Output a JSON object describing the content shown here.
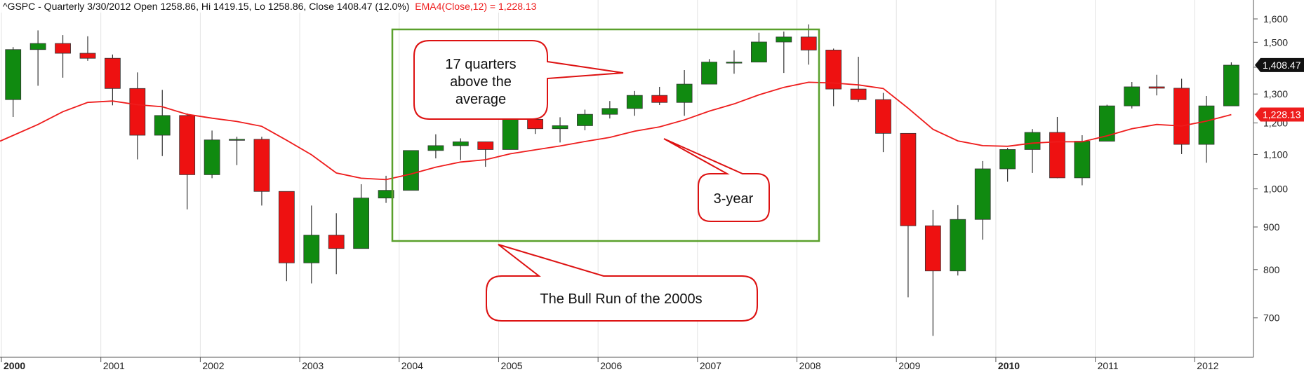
{
  "chart_data": {
    "type": "candlestick",
    "header": {
      "symbol_line": "^GSPC - Quarterly 3/30/2012 Open 1258.86, Hi 1419.15, Lo 1258.86, Close 1408.47 (12.0%)",
      "ema_line": "EMA4(Close,12) = 1,228.13"
    },
    "y_axis": {
      "scale": "log",
      "ylim": [
        640,
        1660
      ],
      "ticks": [
        700,
        800,
        900,
        1000,
        1100,
        1200,
        1300,
        1400,
        1500,
        1600
      ],
      "tick_labels": [
        "700",
        "800",
        "900",
        "1,000",
        "1,100",
        "1,200",
        "1,300",
        "1,400",
        "1,500",
        "1,600"
      ],
      "position": "right"
    },
    "x_axis": {
      "ticks": [
        {
          "label": "2000",
          "bold": true
        },
        {
          "label": "2001",
          "bold": false
        },
        {
          "label": "2002",
          "bold": false
        },
        {
          "label": "2003",
          "bold": false
        },
        {
          "label": "2004",
          "bold": false
        },
        {
          "label": "2005",
          "bold": false
        },
        {
          "label": "2006",
          "bold": false
        },
        {
          "label": "2007",
          "bold": false
        },
        {
          "label": "2008",
          "bold": false
        },
        {
          "label": "2009",
          "bold": false
        },
        {
          "label": "2010",
          "bold": true
        },
        {
          "label": "2011",
          "bold": false
        },
        {
          "label": "2012",
          "bold": false
        }
      ]
    },
    "last_price_tag": {
      "label": "1,408.47",
      "value": 1408.47,
      "color": "#111111"
    },
    "ema_price_tag": {
      "label": "1,228.13",
      "value": 1228.13,
      "color": "#ee1c1c"
    },
    "colors": {
      "up": "#108a10",
      "down": "#ee1111",
      "ema": "#ee1c1c",
      "box": "#5aa02c",
      "callout": "#dd1111"
    },
    "candles": [
      {
        "o": 1280,
        "h": 1480,
        "l": 1220,
        "c": 1470
      },
      {
        "o": 1470,
        "h": 1550,
        "l": 1330,
        "c": 1495
      },
      {
        "o": 1495,
        "h": 1530,
        "l": 1360,
        "c": 1455
      },
      {
        "o": 1455,
        "h": 1525,
        "l": 1425,
        "c": 1435
      },
      {
        "o": 1435,
        "h": 1450,
        "l": 1260,
        "c": 1320
      },
      {
        "o": 1320,
        "h": 1380,
        "l": 1085,
        "c": 1160
      },
      {
        "o": 1160,
        "h": 1315,
        "l": 1095,
        "c": 1225
      },
      {
        "o": 1225,
        "h": 1232,
        "l": 945,
        "c": 1040
      },
      {
        "o": 1040,
        "h": 1175,
        "l": 1030,
        "c": 1145
      },
      {
        "o": 1147,
        "h": 1155,
        "l": 1068,
        "c": 1147
      },
      {
        "o": 1147,
        "h": 1155,
        "l": 955,
        "c": 993
      },
      {
        "o": 993,
        "h": 993,
        "l": 775,
        "c": 815
      },
      {
        "o": 815,
        "h": 955,
        "l": 770,
        "c": 880
      },
      {
        "o": 880,
        "h": 935,
        "l": 790,
        "c": 848
      },
      {
        "o": 848,
        "h": 1013,
        "l": 848,
        "c": 975
      },
      {
        "o": 975,
        "h": 1037,
        "l": 962,
        "c": 996
      },
      {
        "o": 996,
        "h": 1112,
        "l": 996,
        "c": 1112
      },
      {
        "o": 1112,
        "h": 1163,
        "l": 1088,
        "c": 1127
      },
      {
        "o": 1127,
        "h": 1150,
        "l": 1083,
        "c": 1139
      },
      {
        "o": 1139,
        "h": 1140,
        "l": 1063,
        "c": 1115
      },
      {
        "o": 1115,
        "h": 1217,
        "l": 1115,
        "c": 1212
      },
      {
        "o": 1212,
        "h": 1229,
        "l": 1164,
        "c": 1181
      },
      {
        "o": 1181,
        "h": 1219,
        "l": 1137,
        "c": 1191
      },
      {
        "o": 1191,
        "h": 1245,
        "l": 1176,
        "c": 1229
      },
      {
        "o": 1229,
        "h": 1275,
        "l": 1215,
        "c": 1249
      },
      {
        "o": 1249,
        "h": 1311,
        "l": 1224,
        "c": 1295
      },
      {
        "o": 1295,
        "h": 1326,
        "l": 1261,
        "c": 1270
      },
      {
        "o": 1270,
        "h": 1389,
        "l": 1224,
        "c": 1336
      },
      {
        "o": 1336,
        "h": 1432,
        "l": 1336,
        "c": 1420
      },
      {
        "o": 1420,
        "h": 1467,
        "l": 1375,
        "c": 1420
      },
      {
        "o": 1420,
        "h": 1540,
        "l": 1420,
        "c": 1501
      },
      {
        "o": 1501,
        "h": 1545,
        "l": 1378,
        "c": 1522
      },
      {
        "o": 1522,
        "h": 1576,
        "l": 1410,
        "c": 1468
      },
      {
        "o": 1468,
        "h": 1474,
        "l": 1257,
        "c": 1318
      },
      {
        "o": 1318,
        "h": 1441,
        "l": 1272,
        "c": 1280
      },
      {
        "o": 1280,
        "h": 1304,
        "l": 1107,
        "c": 1166
      },
      {
        "o": 1166,
        "h": 1166,
        "l": 741,
        "c": 903
      },
      {
        "o": 903,
        "h": 943,
        "l": 666,
        "c": 797
      },
      {
        "o": 797,
        "h": 956,
        "l": 787,
        "c": 919
      },
      {
        "o": 919,
        "h": 1080,
        "l": 869,
        "c": 1057
      },
      {
        "o": 1057,
        "h": 1120,
        "l": 1020,
        "c": 1115
      },
      {
        "o": 1115,
        "h": 1180,
        "l": 1045,
        "c": 1169
      },
      {
        "o": 1169,
        "h": 1220,
        "l": 1030,
        "c": 1031
      },
      {
        "o": 1031,
        "h": 1160,
        "l": 1010,
        "c": 1141
      },
      {
        "o": 1141,
        "h": 1262,
        "l": 1141,
        "c": 1258
      },
      {
        "o": 1258,
        "h": 1344,
        "l": 1249,
        "c": 1326
      },
      {
        "o": 1326,
        "h": 1371,
        "l": 1295,
        "c": 1321
      },
      {
        "o": 1321,
        "h": 1356,
        "l": 1101,
        "c": 1131
      },
      {
        "o": 1131,
        "h": 1293,
        "l": 1075,
        "c": 1258
      },
      {
        "o": 1258,
        "h": 1419,
        "l": 1258,
        "c": 1408
      }
    ],
    "ema": [
      1141,
      1195,
      1238,
      1270,
      1275,
      1262,
      1255,
      1229,
      1216,
      1205,
      1189,
      1144,
      1099,
      1045,
      1030,
      1026,
      1042,
      1062,
      1077,
      1084,
      1102,
      1114,
      1126,
      1140,
      1153,
      1173,
      1187,
      1210,
      1240,
      1265,
      1297,
      1324,
      1343,
      1340,
      1333,
      1320,
      1250,
      1179,
      1142,
      1127,
      1125,
      1135,
      1139,
      1139,
      1158,
      1181,
      1195,
      1190,
      1206,
      1228
    ],
    "annotations": [
      {
        "text_lines": [
          "17 quarters",
          "above the",
          "average"
        ]
      },
      {
        "text_lines": [
          "3-year"
        ]
      },
      {
        "text_lines": [
          "The Bull Run of the 2000s"
        ]
      }
    ]
  }
}
